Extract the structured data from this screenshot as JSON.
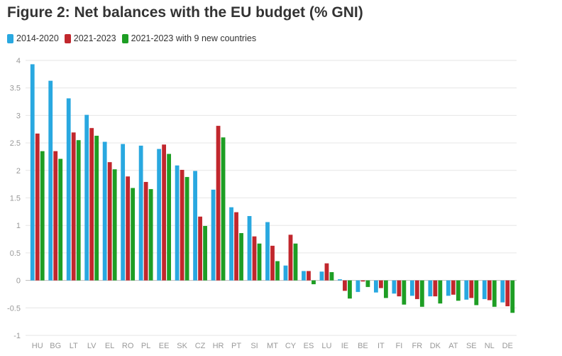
{
  "chart_data": {
    "type": "bar",
    "title": "Figure 2: Net balances with the EU budget (% GNI)",
    "categories": [
      "HU",
      "BG",
      "LT",
      "LV",
      "EL",
      "RO",
      "PL",
      "EE",
      "SK",
      "CZ",
      "HR",
      "PT",
      "SI",
      "MT",
      "CY",
      "ES",
      "LU",
      "IE",
      "BE",
      "IT",
      "FI",
      "FR",
      "DK",
      "AT",
      "SE",
      "NL",
      "DE"
    ],
    "series": [
      {
        "name": "2014-2020",
        "color": "#29a8e0",
        "values": [
          3.93,
          3.63,
          3.31,
          3.01,
          2.52,
          2.48,
          2.45,
          2.39,
          2.09,
          1.99,
          1.65,
          1.33,
          1.17,
          1.06,
          0.27,
          0.17,
          0.16,
          0.02,
          -0.21,
          -0.22,
          -0.24,
          -0.28,
          -0.29,
          -0.28,
          -0.35,
          -0.34,
          -0.4
        ]
      },
      {
        "name": "2021-2023",
        "color": "#c1272d",
        "values": [
          2.67,
          2.35,
          2.69,
          2.77,
          2.15,
          1.89,
          1.79,
          2.47,
          2.01,
          1.16,
          2.81,
          1.24,
          0.8,
          0.63,
          0.83,
          0.17,
          0.31,
          -0.19,
          -0.02,
          -0.14,
          -0.29,
          -0.34,
          -0.29,
          -0.26,
          -0.32,
          -0.36,
          -0.47
        ]
      },
      {
        "name": "2021-2023 with 9 new countries",
        "color": "#1e9e24",
        "values": [
          2.35,
          2.21,
          2.55,
          2.63,
          2.02,
          1.68,
          1.66,
          2.3,
          1.88,
          0.99,
          2.6,
          0.86,
          0.67,
          0.35,
          0.67,
          -0.07,
          0.15,
          -0.33,
          -0.12,
          -0.32,
          -0.44,
          -0.48,
          -0.42,
          -0.37,
          -0.45,
          -0.48,
          -0.59
        ]
      }
    ],
    "ylim": [
      -1,
      4
    ],
    "yticks": [
      "4",
      "3.5",
      "3",
      "2.5",
      "2",
      "1.5",
      "1",
      "0.5",
      "0",
      "-0.5",
      "-1"
    ],
    "ytick_values": [
      4,
      3.5,
      3,
      2.5,
      2,
      1.5,
      1,
      0.5,
      0,
      -0.5,
      -1
    ],
    "grid": true,
    "legend_position": "top-left"
  }
}
